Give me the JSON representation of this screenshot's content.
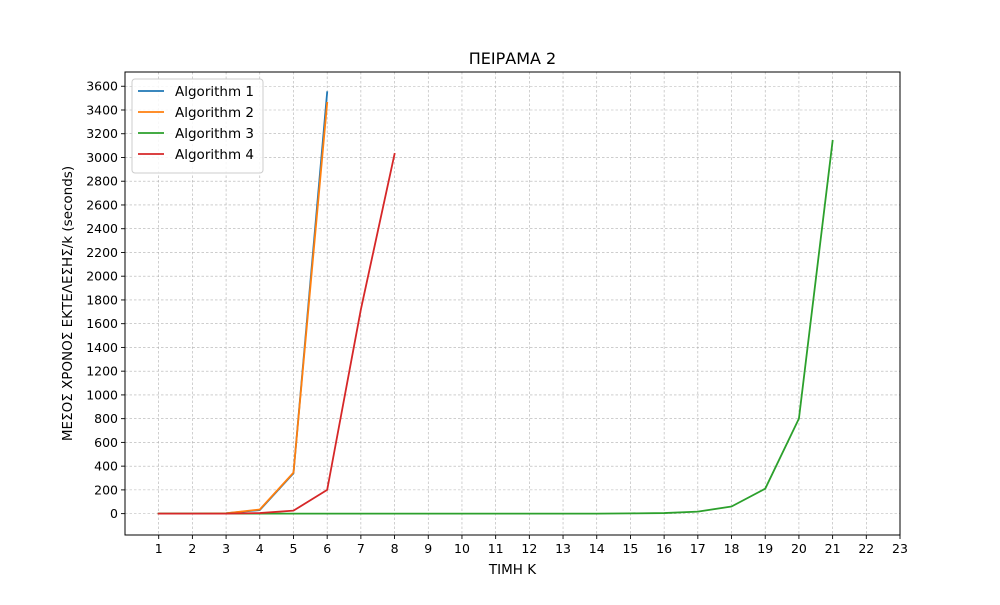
{
  "chart_data": {
    "type": "line",
    "title": "ΠΕΙΡΑΜΑ 2",
    "xlabel": "ΤΙΜΗ Κ",
    "ylabel": "ΜΕΣΟΣ ΧΡΟΝΟΣ ΕΚΤΕΛΕΣΗΣ/k (seconds)",
    "xlim": [
      0,
      23
    ],
    "ylim": [
      -180,
      3720
    ],
    "xticks": [
      1,
      2,
      3,
      4,
      5,
      6,
      7,
      8,
      9,
      10,
      11,
      12,
      13,
      14,
      15,
      16,
      17,
      18,
      19,
      20,
      21,
      22,
      23
    ],
    "yticks": [
      0,
      200,
      400,
      600,
      800,
      1000,
      1200,
      1400,
      1600,
      1800,
      2000,
      2200,
      2400,
      2600,
      2800,
      3000,
      3200,
      3400,
      3600
    ],
    "grid": true,
    "legend_position": "top-left",
    "series": [
      {
        "name": "Algorithm 1",
        "color": "#1f77b4",
        "x": [
          1,
          2,
          3,
          4,
          5,
          6
        ],
        "y": [
          0,
          0,
          3,
          30,
          340,
          3550
        ]
      },
      {
        "name": "Algorithm 2",
        "color": "#ff7f0e",
        "x": [
          1,
          2,
          3,
          4,
          5,
          6
        ],
        "y": [
          0,
          0,
          3,
          35,
          345,
          3460
        ]
      },
      {
        "name": "Algorithm 3",
        "color": "#2ca02c",
        "x": [
          1,
          2,
          3,
          4,
          5,
          6,
          7,
          8,
          9,
          10,
          11,
          12,
          13,
          14,
          15,
          16,
          17,
          18,
          19,
          20,
          21
        ],
        "y": [
          0,
          0,
          0,
          0,
          0,
          0,
          0,
          0,
          0,
          0,
          0,
          0,
          0,
          0,
          2,
          5,
          17,
          60,
          210,
          800,
          3140
        ]
      },
      {
        "name": "Algorithm 4",
        "color": "#d62728",
        "x": [
          1,
          2,
          3,
          4,
          5,
          6,
          7,
          8
        ],
        "y": [
          0,
          0,
          0,
          5,
          25,
          200,
          1720,
          3030
        ]
      }
    ]
  }
}
